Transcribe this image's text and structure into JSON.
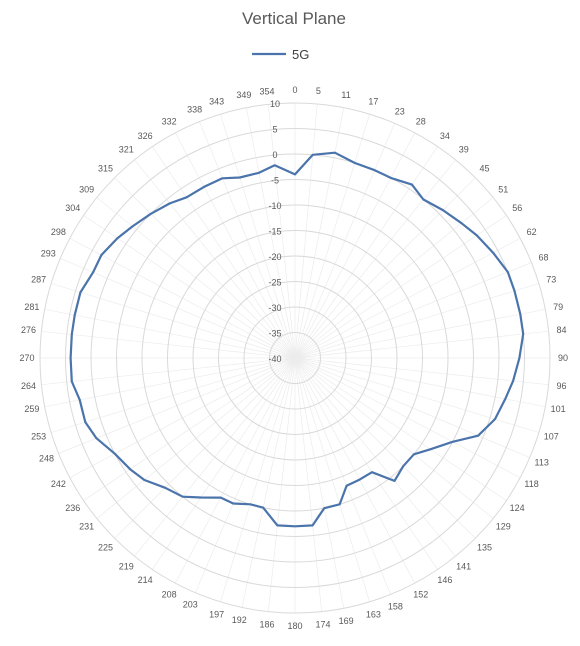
{
  "chart_data": {
    "type": "line",
    "subtype": "polar-radar",
    "title": "Vertical Plane",
    "legend": {
      "position": "top"
    },
    "series": [
      {
        "name": "5G",
        "color": "#4a74ab",
        "angles": [
          0,
          5,
          11,
          17,
          23,
          28,
          34,
          39,
          45,
          51,
          56,
          62,
          68,
          73,
          79,
          84,
          90,
          96,
          101,
          107,
          113,
          118,
          124,
          129,
          135,
          141,
          146,
          152,
          158,
          163,
          169,
          174,
          180,
          186,
          192,
          197,
          203,
          208,
          214,
          219,
          225,
          231,
          236,
          242,
          248,
          253,
          259,
          264,
          270,
          276,
          281,
          287,
          293,
          298,
          304,
          309,
          315,
          321,
          326,
          332,
          338,
          343,
          349,
          354
        ],
        "values": [
          -4,
          0,
          1,
          0,
          0,
          0,
          1,
          0,
          1,
          2,
          3,
          4,
          5,
          5,
          5,
          5,
          4,
          3,
          2,
          1,
          -1,
          -5,
          -8,
          -10,
          -10,
          -9,
          -13,
          -13,
          -13,
          -10,
          -10,
          -7,
          -7,
          -7,
          -10,
          -10,
          -9,
          -9,
          -7,
          -5,
          -4,
          -2,
          -1,
          0,
          2,
          3,
          3,
          4,
          4,
          4,
          4,
          4,
          3,
          3,
          2,
          1,
          0,
          -1,
          -2,
          -2,
          -2,
          -3,
          -3,
          -2
        ]
      }
    ],
    "angle_labels": [
      "0",
      "5",
      "11",
      "17",
      "23",
      "28",
      "34",
      "39",
      "45",
      "51",
      "56",
      "62",
      "68",
      "73",
      "79",
      "84",
      "90",
      "96",
      "101",
      "107",
      "113",
      "118",
      "124",
      "129",
      "135",
      "141",
      "146",
      "152",
      "158",
      "163",
      "169",
      "174",
      "180",
      "186",
      "192",
      "197",
      "203",
      "208",
      "214",
      "219",
      "225",
      "231",
      "236",
      "242",
      "248",
      "253",
      "259",
      "264",
      "270",
      "276",
      "281",
      "287",
      "293",
      "298",
      "304",
      "309",
      "315",
      "321",
      "326",
      "332",
      "338",
      "343",
      "349",
      "354"
    ],
    "radial_axis": {
      "min": -40,
      "max": 10,
      "step": 5,
      "tick_labels": [
        "10",
        "5",
        "0",
        "-5",
        "-10",
        "-15",
        "-20",
        "-25",
        "-30",
        "-35",
        "-40"
      ]
    },
    "grid": true
  }
}
